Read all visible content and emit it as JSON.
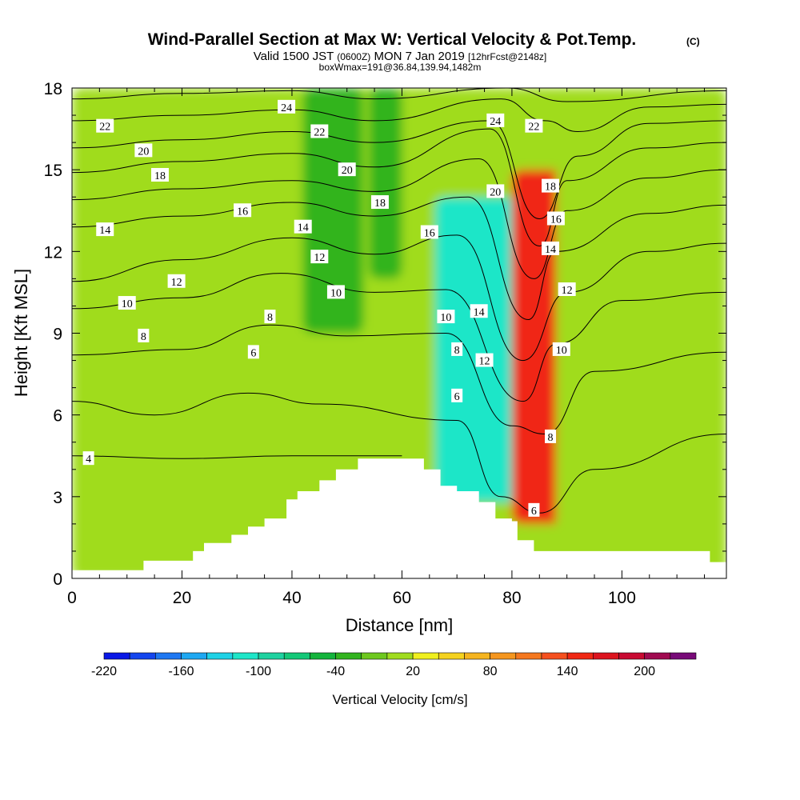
{
  "chart_data": {
    "type": "contour",
    "title": "Wind-Parallel Section at Max W: Vertical Velocity & Pot.Temp.",
    "copyright": "(C)",
    "subtitle_parts": [
      "Valid 1500 JST ",
      "(0600Z)",
      " MON 7 Jan 2019 ",
      "[12hrFcst@2148z]"
    ],
    "subtitle2": "boxWmax=191@36.84,139.94,1482m",
    "xlabel": "Distance [nm]",
    "ylabel": "Height [Kft MSL]",
    "xlim": [
      0,
      119
    ],
    "ylim": [
      0,
      18
    ],
    "xticks": [
      0,
      20,
      40,
      60,
      80,
      100
    ],
    "yticks": [
      0,
      3,
      6,
      9,
      12,
      15,
      18
    ],
    "terrain": [
      [
        0,
        0.3
      ],
      [
        13,
        0.3
      ],
      [
        13,
        0.65
      ],
      [
        22,
        0.65
      ],
      [
        22,
        1.0
      ],
      [
        24,
        1.0
      ],
      [
        24,
        1.3
      ],
      [
        29,
        1.3
      ],
      [
        29,
        1.6
      ],
      [
        32,
        1.6
      ],
      [
        32,
        1.9
      ],
      [
        35,
        1.9
      ],
      [
        35,
        2.2
      ],
      [
        39,
        2.2
      ],
      [
        39,
        2.9
      ],
      [
        41,
        2.9
      ],
      [
        41,
        3.2
      ],
      [
        45,
        3.2
      ],
      [
        45,
        3.6
      ],
      [
        48,
        3.6
      ],
      [
        48,
        4.0
      ],
      [
        52,
        4.0
      ],
      [
        52,
        4.4
      ],
      [
        64,
        4.4
      ],
      [
        64,
        4.0
      ],
      [
        67,
        4.0
      ],
      [
        67,
        3.4
      ],
      [
        70,
        3.4
      ],
      [
        70,
        3.2
      ],
      [
        74,
        3.2
      ],
      [
        74,
        2.8
      ],
      [
        77,
        2.8
      ],
      [
        77,
        2.2
      ],
      [
        80,
        2.2
      ],
      [
        80,
        2.1
      ],
      [
        81,
        2.1
      ],
      [
        81,
        1.4
      ],
      [
        84,
        1.4
      ],
      [
        84,
        1.0
      ],
      [
        116,
        1.0
      ],
      [
        116,
        0.6
      ],
      [
        119,
        0.6
      ]
    ],
    "colorbar": {
      "label": "Vertical Velocity [cm/s]",
      "tick_labels": [
        "-220",
        "-160",
        "-100",
        "-40",
        "20",
        "80",
        "140",
        "200"
      ],
      "levels": [
        -220,
        -200,
        -180,
        -160,
        -140,
        -120,
        -100,
        -80,
        -60,
        -40,
        -20,
        0,
        20,
        40,
        60,
        80,
        100,
        120,
        140,
        160,
        180,
        200,
        220,
        240
      ],
      "colors": [
        "#0a18e6",
        "#1446ee",
        "#1e78f2",
        "#1ea8f2",
        "#1ed2e6",
        "#1ee6c8",
        "#1ed2a0",
        "#14c878",
        "#14b43c",
        "#32b41e",
        "#6ec81e",
        "#a0dc1e",
        "#f0f01e",
        "#f5d21e",
        "#f5b41e",
        "#f5961e",
        "#f5781e",
        "#f5501e",
        "#f02814",
        "#dc141e",
        "#c80a32",
        "#a00a50",
        "#780a78",
        "#500a8c"
      ]
    },
    "w_features": [
      {
        "name": "bg-green-west",
        "x0": 0,
        "x1": 119,
        "y0": 0,
        "y1": 18,
        "value": 0
      },
      {
        "name": "yellow-lower",
        "x0": 0,
        "x1": 66,
        "y0": 0,
        "y1": 6.3,
        "value": 15
      },
      {
        "name": "yellow-band-mid",
        "x0": 20,
        "x1": 62,
        "y0": 4,
        "y1": 18,
        "value": 15
      },
      {
        "name": "green-downdraft-1",
        "x0": 42,
        "x1": 53,
        "y0": 9,
        "y1": 18,
        "value": -35
      },
      {
        "name": "green-downdraft-2",
        "x0": 54,
        "x1": 60,
        "y0": 11,
        "y1": 18,
        "value": -35
      },
      {
        "name": "strong-downdraft",
        "x0": 66,
        "x1": 82,
        "y0": 2.8,
        "y1": 14,
        "value": -110
      },
      {
        "name": "strong-updraft",
        "x0": 80,
        "x1": 90,
        "y0": 2,
        "y1": 15,
        "value": 150
      },
      {
        "name": "east-green",
        "x0": 88,
        "x1": 119,
        "y0": 1,
        "y1": 18,
        "value": 0
      }
    ],
    "isentropes": [
      {
        "value": 4,
        "points": [
          [
            0,
            4.5
          ],
          [
            20,
            4.4
          ],
          [
            40,
            4.5
          ],
          [
            60,
            4.5
          ]
        ]
      },
      {
        "value": 6,
        "points": [
          [
            0,
            6.5
          ],
          [
            15,
            6.0
          ],
          [
            32,
            6.8
          ],
          [
            45,
            6.4
          ],
          [
            70,
            5.8
          ],
          [
            78,
            3.0
          ],
          [
            85,
            2.4
          ],
          [
            95,
            4.0
          ],
          [
            119,
            5.3
          ]
        ]
      },
      {
        "value": 8,
        "points": [
          [
            0,
            8.2
          ],
          [
            20,
            8.4
          ],
          [
            36,
            9.3
          ],
          [
            50,
            8.9
          ],
          [
            68,
            9.0
          ],
          [
            80,
            5.6
          ],
          [
            86,
            5.3
          ],
          [
            95,
            7.6
          ],
          [
            119,
            8.3
          ]
        ]
      },
      {
        "value": 10,
        "points": [
          [
            0,
            9.9
          ],
          [
            20,
            10.3
          ],
          [
            38,
            11.2
          ],
          [
            55,
            10.5
          ],
          [
            68,
            10.6
          ],
          [
            82,
            6.5
          ],
          [
            88,
            8.6
          ],
          [
            100,
            10.2
          ],
          [
            119,
            10.5
          ]
        ]
      },
      {
        "value": 12,
        "points": [
          [
            0,
            10.9
          ],
          [
            20,
            11.7
          ],
          [
            40,
            12.5
          ],
          [
            55,
            11.9
          ],
          [
            70,
            12.6
          ],
          [
            82,
            8.0
          ],
          [
            90,
            10.5
          ],
          [
            105,
            12.0
          ],
          [
            119,
            12.3
          ]
        ]
      },
      {
        "value": 14,
        "points": [
          [
            0,
            12.9
          ],
          [
            20,
            13.3
          ],
          [
            40,
            13.8
          ],
          [
            55,
            13.3
          ],
          [
            72,
            14.0
          ],
          [
            83,
            9.5
          ],
          [
            88,
            12.0
          ],
          [
            105,
            13.4
          ],
          [
            119,
            13.7
          ]
        ]
      },
      {
        "value": 16,
        "points": [
          [
            0,
            13.9
          ],
          [
            20,
            14.3
          ],
          [
            40,
            14.6
          ],
          [
            55,
            14.2
          ],
          [
            74,
            15.4
          ],
          [
            84,
            11.0
          ],
          [
            90,
            13.5
          ],
          [
            105,
            14.7
          ],
          [
            119,
            15.0
          ]
        ]
      },
      {
        "value": 18,
        "points": [
          [
            0,
            14.9
          ],
          [
            20,
            15.3
          ],
          [
            40,
            15.6
          ],
          [
            55,
            15.1
          ],
          [
            76,
            16.5
          ],
          [
            85,
            12.2
          ],
          [
            90,
            14.6
          ],
          [
            105,
            15.8
          ],
          [
            119,
            16.0
          ]
        ]
      },
      {
        "value": 20,
        "points": [
          [
            0,
            15.8
          ],
          [
            20,
            16.1
          ],
          [
            40,
            16.4
          ],
          [
            55,
            16.0
          ],
          [
            76,
            16.8
          ],
          [
            85,
            13.2
          ],
          [
            92,
            15.5
          ],
          [
            105,
            16.7
          ],
          [
            119,
            16.8
          ]
        ]
      },
      {
        "value": 22,
        "points": [
          [
            0,
            16.8
          ],
          [
            20,
            17.0
          ],
          [
            40,
            17.2
          ],
          [
            55,
            16.8
          ],
          [
            78,
            17.6
          ],
          [
            86,
            16.8
          ],
          [
            92,
            16.4
          ],
          [
            105,
            17.3
          ],
          [
            119,
            17.4
          ]
        ]
      },
      {
        "value": 24,
        "points": [
          [
            0,
            17.6
          ],
          [
            20,
            17.8
          ],
          [
            40,
            17.9
          ],
          [
            55,
            17.6
          ],
          [
            79,
            18.0
          ],
          [
            90,
            17.5
          ],
          [
            119,
            17.9
          ]
        ]
      }
    ],
    "contour_labels": [
      {
        "text": "4",
        "x": 3,
        "y": 4.4
      },
      {
        "text": "6",
        "x": 33,
        "y": 8.3
      },
      {
        "text": "8",
        "x": 13,
        "y": 8.9
      },
      {
        "text": "8",
        "x": 36,
        "y": 9.6
      },
      {
        "text": "10",
        "x": 10,
        "y": 10.1
      },
      {
        "text": "10",
        "x": 48,
        "y": 10.5
      },
      {
        "text": "12",
        "x": 19,
        "y": 10.9
      },
      {
        "text": "12",
        "x": 45,
        "y": 11.8
      },
      {
        "text": "14",
        "x": 6,
        "y": 12.8
      },
      {
        "text": "14",
        "x": 42,
        "y": 12.9
      },
      {
        "text": "16",
        "x": 31,
        "y": 13.5
      },
      {
        "text": "16",
        "x": 65,
        "y": 12.7
      },
      {
        "text": "18",
        "x": 16,
        "y": 14.8
      },
      {
        "text": "18",
        "x": 56,
        "y": 13.8
      },
      {
        "text": "20",
        "x": 13,
        "y": 15.7
      },
      {
        "text": "20",
        "x": 50,
        "y": 15.0
      },
      {
        "text": "22",
        "x": 6,
        "y": 16.6
      },
      {
        "text": "22",
        "x": 45,
        "y": 16.4
      },
      {
        "text": "24",
        "x": 39,
        "y": 17.3
      },
      {
        "text": "24",
        "x": 77,
        "y": 16.8
      },
      {
        "text": "22",
        "x": 84,
        "y": 16.6
      },
      {
        "text": "20",
        "x": 77,
        "y": 14.2
      },
      {
        "text": "18",
        "x": 87,
        "y": 14.4
      },
      {
        "text": "16",
        "x": 88,
        "y": 13.2
      },
      {
        "text": "14",
        "x": 87,
        "y": 12.1
      },
      {
        "text": "12",
        "x": 90,
        "y": 10.6
      },
      {
        "text": "14",
        "x": 74,
        "y": 9.8
      },
      {
        "text": "10",
        "x": 68,
        "y": 9.6
      },
      {
        "text": "10",
        "x": 89,
        "y": 8.4
      },
      {
        "text": "12",
        "x": 75,
        "y": 8.0
      },
      {
        "text": "8",
        "x": 70,
        "y": 8.4
      },
      {
        "text": "6",
        "x": 70,
        "y": 6.7
      },
      {
        "text": "8",
        "x": 87,
        "y": 5.2
      },
      {
        "text": "6",
        "x": 84,
        "y": 2.5
      }
    ]
  }
}
